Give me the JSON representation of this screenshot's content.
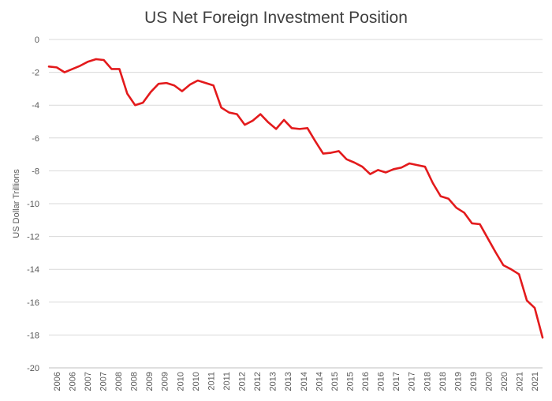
{
  "chart_data": {
    "type": "line",
    "title": "US Net Foreign Investment Position",
    "xlabel": "",
    "ylabel": "US Dollar Trillions",
    "ylim": [
      -20,
      0
    ],
    "y_ticks": [
      0,
      -2,
      -4,
      -6,
      -8,
      -10,
      -12,
      -14,
      -16,
      -18,
      -20
    ],
    "x_tick_labels": [
      "2006",
      "2006",
      "2007",
      "2007",
      "2008",
      "2008",
      "2009",
      "2009",
      "2010",
      "2010",
      "2011",
      "2011",
      "2012",
      "2012",
      "2013",
      "2013",
      "2014",
      "2014",
      "2015",
      "2015",
      "2016",
      "2016",
      "2017",
      "2017",
      "2018",
      "2018",
      "2019",
      "2019",
      "2020",
      "2020",
      "2021",
      "2021"
    ],
    "grid": true,
    "legend": "none",
    "line_color": "#e31a1c",
    "series": [
      {
        "values": [
          -1.65,
          -1.7,
          -2.0,
          -1.8,
          -1.6,
          -1.35,
          -1.2,
          -1.25,
          -1.8,
          -1.8,
          -3.3,
          -4.0,
          -3.85,
          -3.2,
          -2.7,
          -2.65,
          -2.8,
          -3.15,
          -2.75,
          -2.5,
          -2.65,
          -2.8,
          -4.15,
          -4.45,
          -4.55,
          -5.2,
          -4.95,
          -4.55,
          -5.05,
          -5.45,
          -4.9,
          -5.4,
          -5.45,
          -5.4,
          -6.2,
          -6.95,
          -6.9,
          -6.8,
          -7.3,
          -7.5,
          -7.75,
          -8.2,
          -7.95,
          -8.1,
          -7.9,
          -7.8,
          -7.55,
          -7.65,
          -7.75,
          -8.75,
          -9.55,
          -9.7,
          -10.25,
          -10.55,
          -11.2,
          -11.25,
          -12.1,
          -12.95,
          -13.75,
          -14.0,
          -14.3,
          -15.9,
          -16.35,
          -18.15
        ]
      }
    ]
  }
}
